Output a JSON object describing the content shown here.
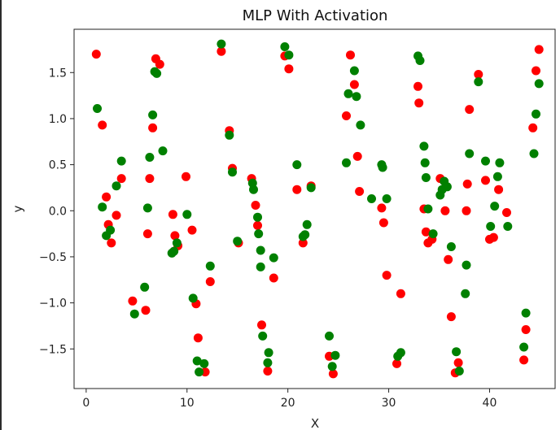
{
  "chart_data": {
    "type": "scatter",
    "title": "MLP With Activation",
    "xlabel": "X",
    "ylabel": "y",
    "xlim": [
      -1.2,
      46.5
    ],
    "ylim": [
      -1.93,
      1.97
    ],
    "xticks": [
      0,
      10,
      20,
      30,
      40
    ],
    "yticks": [
      -1.5,
      -1.0,
      -0.5,
      0.0,
      0.5,
      1.0,
      1.5
    ],
    "ytick_labels": [
      "−1.5",
      "−1.0",
      "−0.5",
      "0.0",
      "0.5",
      "1.0",
      "1.5"
    ],
    "grid": false,
    "series": [
      {
        "color": "#ff0000",
        "points": [
          [
            1.0,
            1.7
          ],
          [
            1.6,
            0.93
          ],
          [
            2.0,
            0.15
          ],
          [
            2.2,
            -0.15
          ],
          [
            2.5,
            -0.35
          ],
          [
            3.0,
            -0.05
          ],
          [
            3.5,
            0.35
          ],
          [
            4.6,
            -0.98
          ],
          [
            5.9,
            -1.08
          ],
          [
            6.1,
            -0.25
          ],
          [
            6.3,
            0.35
          ],
          [
            6.6,
            0.9
          ],
          [
            6.9,
            1.65
          ],
          [
            7.3,
            1.59
          ],
          [
            8.6,
            -0.04
          ],
          [
            8.8,
            -0.27
          ],
          [
            9.1,
            -0.38
          ],
          [
            9.9,
            0.37
          ],
          [
            10.5,
            -0.21
          ],
          [
            10.9,
            -1.01
          ],
          [
            11.1,
            -1.38
          ],
          [
            11.8,
            -1.75
          ],
          [
            12.3,
            -0.77
          ],
          [
            13.4,
            1.73
          ],
          [
            14.2,
            0.87
          ],
          [
            14.5,
            0.46
          ],
          [
            15.1,
            -0.35
          ],
          [
            16.4,
            0.35
          ],
          [
            16.8,
            0.06
          ],
          [
            17.0,
            -0.16
          ],
          [
            17.4,
            -1.24
          ],
          [
            18.0,
            -1.74
          ],
          [
            18.6,
            -0.73
          ],
          [
            19.7,
            1.68
          ],
          [
            20.1,
            1.54
          ],
          [
            20.9,
            0.23
          ],
          [
            21.5,
            -0.35
          ],
          [
            22.3,
            0.27
          ],
          [
            24.1,
            -1.58
          ],
          [
            24.5,
            -1.77
          ],
          [
            25.8,
            1.03
          ],
          [
            26.2,
            1.69
          ],
          [
            26.6,
            1.37
          ],
          [
            26.9,
            0.59
          ],
          [
            27.1,
            0.21
          ],
          [
            29.3,
            0.03
          ],
          [
            29.5,
            -0.13
          ],
          [
            29.8,
            -0.7
          ],
          [
            30.8,
            -1.66
          ],
          [
            31.2,
            -0.9
          ],
          [
            32.9,
            1.35
          ],
          [
            33.0,
            1.17
          ],
          [
            33.5,
            0.02
          ],
          [
            33.7,
            -0.23
          ],
          [
            33.9,
            -0.35
          ],
          [
            34.3,
            -0.31
          ],
          [
            35.1,
            0.35
          ],
          [
            35.6,
            0.0
          ],
          [
            35.9,
            -0.53
          ],
          [
            36.2,
            -1.15
          ],
          [
            36.6,
            -1.76
          ],
          [
            36.9,
            -1.65
          ],
          [
            37.7,
            0.0
          ],
          [
            37.8,
            0.29
          ],
          [
            38.0,
            1.1
          ],
          [
            38.9,
            1.48
          ],
          [
            39.6,
            0.33
          ],
          [
            40.0,
            -0.31
          ],
          [
            40.4,
            -0.29
          ],
          [
            40.9,
            0.23
          ],
          [
            41.7,
            -0.02
          ],
          [
            43.4,
            -1.62
          ],
          [
            43.6,
            -1.29
          ],
          [
            44.3,
            0.9
          ],
          [
            44.6,
            1.52
          ],
          [
            44.9,
            1.75
          ]
        ]
      },
      {
        "color": "#008000",
        "points": [
          [
            1.1,
            1.11
          ],
          [
            1.6,
            0.04
          ],
          [
            2.0,
            -0.27
          ],
          [
            2.4,
            -0.21
          ],
          [
            3.0,
            0.27
          ],
          [
            3.5,
            0.54
          ],
          [
            4.8,
            -1.12
          ],
          [
            5.8,
            -0.83
          ],
          [
            6.1,
            0.03
          ],
          [
            6.3,
            0.58
          ],
          [
            6.6,
            1.04
          ],
          [
            6.8,
            1.51
          ],
          [
            7.0,
            1.49
          ],
          [
            7.6,
            0.65
          ],
          [
            8.5,
            -0.46
          ],
          [
            8.7,
            -0.44
          ],
          [
            9.0,
            -0.35
          ],
          [
            10.0,
            -0.04
          ],
          [
            10.6,
            -0.95
          ],
          [
            11.0,
            -1.63
          ],
          [
            11.2,
            -1.75
          ],
          [
            11.7,
            -1.66
          ],
          [
            12.3,
            -0.6
          ],
          [
            13.4,
            1.81
          ],
          [
            14.2,
            0.82
          ],
          [
            14.5,
            0.42
          ],
          [
            15.0,
            -0.33
          ],
          [
            16.5,
            0.3
          ],
          [
            16.6,
            0.23
          ],
          [
            17.0,
            -0.07
          ],
          [
            17.1,
            -0.25
          ],
          [
            17.3,
            -0.43
          ],
          [
            17.3,
            -0.61
          ],
          [
            17.5,
            -1.36
          ],
          [
            18.0,
            -1.65
          ],
          [
            18.1,
            -1.54
          ],
          [
            18.6,
            -0.51
          ],
          [
            19.7,
            1.78
          ],
          [
            20.1,
            1.69
          ],
          [
            20.9,
            0.5
          ],
          [
            21.5,
            -0.28
          ],
          [
            21.7,
            -0.26
          ],
          [
            21.9,
            -0.15
          ],
          [
            22.3,
            0.25
          ],
          [
            24.1,
            -1.36
          ],
          [
            24.4,
            -1.69
          ],
          [
            24.7,
            -1.57
          ],
          [
            25.8,
            0.52
          ],
          [
            26.0,
            1.27
          ],
          [
            26.6,
            1.52
          ],
          [
            26.8,
            1.24
          ],
          [
            27.2,
            0.93
          ],
          [
            28.3,
            0.13
          ],
          [
            29.3,
            0.5
          ],
          [
            29.4,
            0.47
          ],
          [
            29.8,
            0.13
          ],
          [
            30.9,
            -1.58
          ],
          [
            31.2,
            -1.54
          ],
          [
            32.9,
            1.68
          ],
          [
            33.1,
            1.63
          ],
          [
            33.5,
            0.7
          ],
          [
            33.6,
            0.52
          ],
          [
            33.7,
            0.36
          ],
          [
            33.9,
            0.02
          ],
          [
            34.4,
            -0.25
          ],
          [
            35.1,
            0.17
          ],
          [
            35.3,
            0.23
          ],
          [
            35.5,
            0.32
          ],
          [
            35.8,
            0.26
          ],
          [
            36.2,
            -0.39
          ],
          [
            36.7,
            -1.53
          ],
          [
            37.0,
            -1.74
          ],
          [
            37.6,
            -0.9
          ],
          [
            37.7,
            -0.59
          ],
          [
            38.0,
            0.62
          ],
          [
            38.9,
            1.4
          ],
          [
            39.6,
            0.54
          ],
          [
            40.1,
            -0.17
          ],
          [
            40.5,
            0.05
          ],
          [
            40.8,
            0.37
          ],
          [
            41.0,
            0.52
          ],
          [
            41.8,
            -0.17
          ],
          [
            43.4,
            -1.48
          ],
          [
            43.6,
            -1.11
          ],
          [
            44.4,
            0.62
          ],
          [
            44.6,
            1.05
          ],
          [
            44.9,
            1.38
          ]
        ]
      }
    ]
  }
}
